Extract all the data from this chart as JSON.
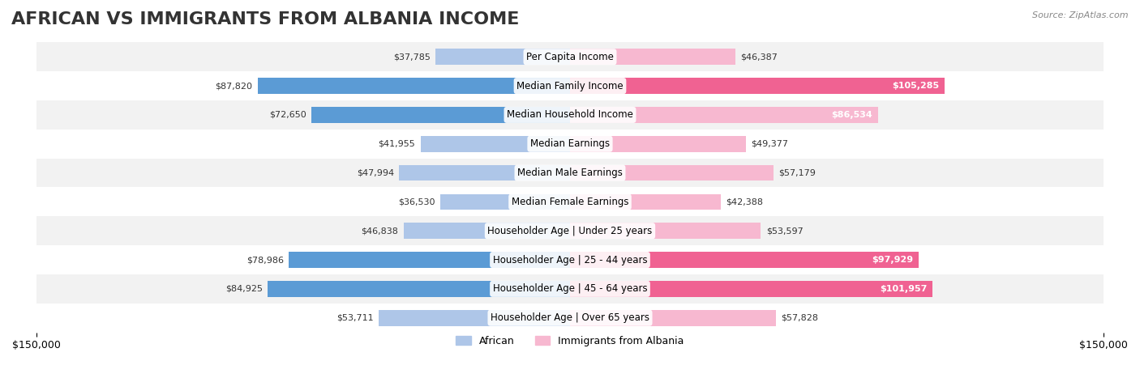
{
  "title": "AFRICAN VS IMMIGRANTS FROM ALBANIA INCOME",
  "source": "Source: ZipAtlas.com",
  "categories": [
    "Per Capita Income",
    "Median Family Income",
    "Median Household Income",
    "Median Earnings",
    "Median Male Earnings",
    "Median Female Earnings",
    "Householder Age | Under 25 years",
    "Householder Age | 25 - 44 years",
    "Householder Age | 45 - 64 years",
    "Householder Age | Over 65 years"
  ],
  "african_values": [
    37785,
    87820,
    72650,
    41955,
    47994,
    36530,
    46838,
    78986,
    84925,
    53711
  ],
  "albania_values": [
    46387,
    105285,
    86534,
    49377,
    57179,
    42388,
    53597,
    97929,
    101957,
    57828
  ],
  "african_labels": [
    "$37,785",
    "$87,820",
    "$72,650",
    "$41,955",
    "$47,994",
    "$36,530",
    "$46,838",
    "$78,986",
    "$84,925",
    "$53,711"
  ],
  "albania_labels": [
    "$46,387",
    "$105,285",
    "$86,534",
    "$49,377",
    "$57,179",
    "$42,388",
    "$53,597",
    "$97,929",
    "$101,957",
    "$57,828"
  ],
  "african_color_dark": "#5b9bd5",
  "african_color_light": "#aec6e8",
  "albania_color_dark": "#f06292",
  "albania_color_light": "#f7b8d0",
  "bar_height": 0.55,
  "xlim": 150000,
  "background_row_color": "#f2f2f2",
  "background_alt_color": "#ffffff",
  "legend_african": "African",
  "legend_albania": "Immigrants from Albania",
  "title_fontsize": 16,
  "label_fontsize": 9,
  "axis_fontsize": 9
}
